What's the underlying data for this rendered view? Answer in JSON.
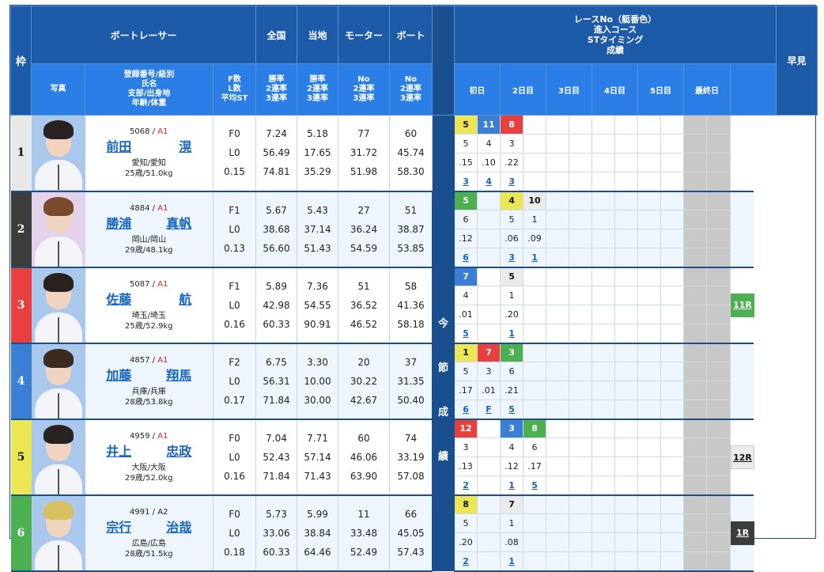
{
  "header": {
    "waku": "枠",
    "racer_group": "ボートレーサー",
    "national": "全国",
    "local": "当地",
    "motor": "モーター",
    "boat": "ボート",
    "photo": "写真",
    "reg_lines": [
      "登録番号/級別",
      "氏名",
      "支部/出身地",
      "年齢/体重"
    ],
    "fl_lines": [
      "F数",
      "L数",
      "平均ST"
    ],
    "national_lines": [
      "勝率",
      "2連率",
      "3連率"
    ],
    "local_lines": [
      "勝率",
      "2連率",
      "3連率"
    ],
    "motor_lines": [
      "No",
      "2連率",
      "3連率"
    ],
    "boat_lines": [
      "No",
      "2連率",
      "3連率"
    ],
    "race_info_lines": [
      "レースNo（艇番色）",
      "進入コース",
      "STタイミング",
      "成績"
    ],
    "days": [
      "初日",
      "2日目",
      "3日目",
      "4日目",
      "5日目",
      "最終日"
    ],
    "hayami": "早見",
    "konsetsu_chars": [
      "今",
      "節",
      "成",
      "績"
    ]
  },
  "colors": {
    "boat1": "#e8e8e8",
    "boat2": "#3c3c3c",
    "boat3": "#e8403f",
    "boat4": "#3b7fd4",
    "boat5": "#ece654",
    "boat6": "#4caf50",
    "header_dark": "#1d5aa8",
    "header_light": "#2b7ee6",
    "link": "#1565c0"
  },
  "racers": [
    {
      "waku": "1",
      "reg_no": "5068",
      "class": "A1",
      "name_last": "前田",
      "name_first": "滉",
      "branch": "愛知/愛知",
      "age_weight": "25歳/51.0kg",
      "f": "F0",
      "l": "L0",
      "st": "0.15",
      "national": [
        "7.24",
        "56.49",
        "74.81"
      ],
      "local": [
        "5.18",
        "17.65",
        "35.29"
      ],
      "motor": [
        "77",
        "31.72",
        "51.98"
      ],
      "boat": [
        "60",
        "45.74",
        "58.30"
      ],
      "races": [
        {
          "race": "5",
          "boat": 5,
          "course": "5",
          "st": ".15",
          "result": "3"
        },
        {
          "race": "11",
          "boat": 4,
          "course": "4",
          "st": ".10",
          "result": "4"
        },
        {
          "race": "8",
          "boat": 3,
          "course": "3",
          "st": ".22",
          "result": "3"
        },
        null,
        null,
        null,
        null,
        null,
        null,
        null
      ],
      "hayami": ""
    },
    {
      "waku": "2",
      "reg_no": "4884",
      "class": "A1",
      "name_last": "勝浦",
      "name_first": "真帆",
      "branch": "岡山/岡山",
      "age_weight": "29歳/48.1kg",
      "f": "F1",
      "l": "L0",
      "st": "0.13",
      "national": [
        "5.67",
        "38.68",
        "56.60"
      ],
      "local": [
        "5.43",
        "37.14",
        "51.43"
      ],
      "motor": [
        "27",
        "36.24",
        "54.59"
      ],
      "boat": [
        "51",
        "38.87",
        "53.85"
      ],
      "races": [
        {
          "race": "5",
          "boat": 6,
          "course": "6",
          "st": ".12",
          "result": "6"
        },
        null,
        {
          "race": "4",
          "boat": 5,
          "course": "5",
          "st": ".06",
          "result": "3"
        },
        {
          "race": "10",
          "boat": 1,
          "course": "1",
          "st": ".09",
          "result": "1"
        },
        null,
        null,
        null,
        null,
        null,
        null
      ],
      "hayami": ""
    },
    {
      "waku": "3",
      "reg_no": "5087",
      "class": "A1",
      "name_last": "佐藤",
      "name_first": "航",
      "branch": "埼玉/埼玉",
      "age_weight": "25歳/52.9kg",
      "f": "F1",
      "l": "L0",
      "st": "0.16",
      "national": [
        "5.89",
        "42.98",
        "60.33"
      ],
      "local": [
        "7.36",
        "54.55",
        "90.91"
      ],
      "motor": [
        "51",
        "36.52",
        "46.52"
      ],
      "boat": [
        "58",
        "41.36",
        "58.18"
      ],
      "races": [
        {
          "race": "7",
          "boat": 4,
          "course": "4",
          "st": ".01",
          "result": "5"
        },
        null,
        {
          "race": "5",
          "boat": 1,
          "course": "1",
          "st": ".20",
          "result": "1"
        },
        null,
        null,
        null,
        null,
        null,
        null,
        null
      ],
      "hayami": "11R"
    },
    {
      "waku": "4",
      "reg_no": "4857",
      "class": "A1",
      "name_last": "加藤",
      "name_first": "翔馬",
      "branch": "兵庫/兵庫",
      "age_weight": "28歳/53.8kg",
      "f": "F2",
      "l": "L0",
      "st": "0.17",
      "national": [
        "6.75",
        "56.31",
        "71.84"
      ],
      "local": [
        "3.30",
        "10.00",
        "30.00"
      ],
      "motor": [
        "20",
        "30.22",
        "42.67"
      ],
      "boat": [
        "37",
        "31.35",
        "50.40"
      ],
      "races": [
        {
          "race": "1",
          "boat": 5,
          "course": "5",
          "st": ".17",
          "result": "6"
        },
        {
          "race": "7",
          "boat": 3,
          "course": "3",
          "st": ".01",
          "result": "F"
        },
        {
          "race": "3",
          "boat": 6,
          "course": "6",
          "st": ".21",
          "result": "5"
        },
        null,
        null,
        null,
        null,
        null,
        null,
        null
      ],
      "hayami": ""
    },
    {
      "waku": "5",
      "reg_no": "4959",
      "class": "A1",
      "name_last": "井上",
      "name_first": "忠政",
      "branch": "大阪/大阪",
      "age_weight": "29歳/52.0kg",
      "f": "F0",
      "l": "L0",
      "st": "0.16",
      "national": [
        "7.04",
        "52.43",
        "71.84"
      ],
      "local": [
        "7.71",
        "57.14",
        "71.43"
      ],
      "motor": [
        "60",
        "46.06",
        "63.90"
      ],
      "boat": [
        "74",
        "33.19",
        "57.08"
      ],
      "races": [
        {
          "race": "12",
          "boat": 3,
          "course": "3",
          "st": ".13",
          "result": "2"
        },
        null,
        {
          "race": "3",
          "boat": 4,
          "course": "4",
          "st": ".12",
          "result": "1"
        },
        {
          "race": "8",
          "boat": 6,
          "course": "6",
          "st": ".17",
          "result": "5"
        },
        null,
        null,
        null,
        null,
        null,
        null
      ],
      "hayami": "12R"
    },
    {
      "waku": "6",
      "reg_no": "4991",
      "class": "A2",
      "name_last": "宗行",
      "name_first": "治哉",
      "branch": "広島/広島",
      "age_weight": "28歳/51.5kg",
      "f": "F0",
      "l": "L0",
      "st": "0.18",
      "national": [
        "5.73",
        "33.06",
        "60.33"
      ],
      "local": [
        "5.99",
        "38.84",
        "64.46"
      ],
      "motor": [
        "11",
        "33.48",
        "52.49"
      ],
      "boat": [
        "66",
        "45.05",
        "57.43"
      ],
      "races": [
        {
          "race": "8",
          "boat": 5,
          "course": "5",
          "st": ".20",
          "result": "2"
        },
        null,
        {
          "race": "7",
          "boat": 1,
          "course": "1",
          "st": ".08",
          "result": "1"
        },
        null,
        null,
        null,
        null,
        null,
        null,
        null
      ],
      "hayami": "1R"
    }
  ]
}
